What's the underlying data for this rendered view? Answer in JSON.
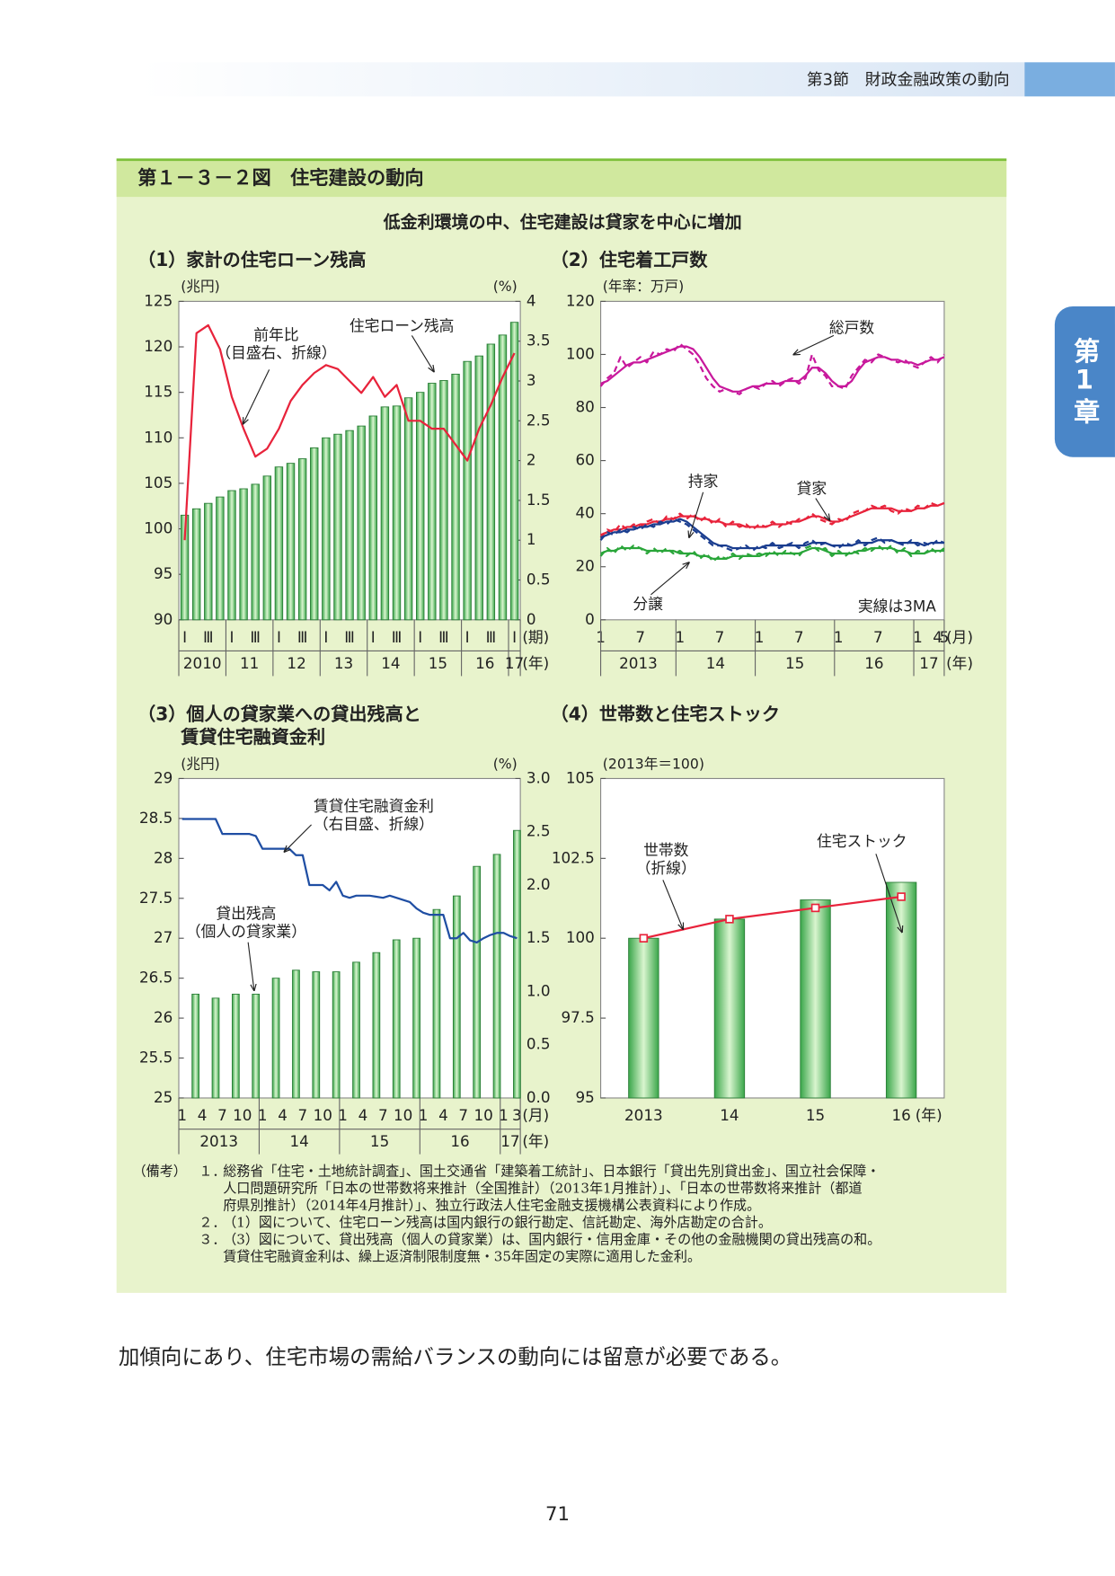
{
  "header": {
    "section": "第3節　財政金融政策の動向",
    "chapter": "第1章"
  },
  "figure": {
    "title": "第１－３－２図　住宅建設の動向",
    "subtitle": "低金利環境の中、住宅建設は貸家を中心に増加"
  },
  "chart_data": [
    {
      "type": "bar",
      "title": [
        "（1）家計の住宅ローン残高"
      ],
      "y_unit": "(兆円)",
      "y2_unit": "(%)",
      "categories": [
        "Ⅰ",
        null,
        "Ⅲ",
        null,
        "Ⅰ",
        null,
        "Ⅲ",
        null,
        "Ⅰ",
        null,
        "Ⅲ",
        null,
        "Ⅰ",
        null,
        "Ⅲ",
        null,
        "Ⅰ",
        null,
        "Ⅲ",
        null,
        "Ⅰ",
        null,
        "Ⅲ",
        null,
        "Ⅰ",
        null,
        "Ⅲ",
        null,
        "Ⅰ"
      ],
      "years": [
        "2010",
        "11",
        "12",
        "13",
        "14",
        "15",
        "16",
        "17"
      ],
      "x_units": [
        "(期)",
        "(年)"
      ],
      "ylim": [
        90,
        125
      ],
      "yticks": [
        90,
        95,
        100,
        105,
        110,
        115,
        120,
        125
      ],
      "y2lim": [
        0,
        4
      ],
      "y2ticks": [
        0,
        0.5,
        1,
        1.5,
        2,
        2.5,
        3,
        3.5,
        4
      ],
      "series": [
        {
          "name": "住宅ローン残高",
          "kind": "bar",
          "color": "#3aa64a",
          "values": [
            101.5,
            102.2,
            102.8,
            103.5,
            104.2,
            104.4,
            104.9,
            105.8,
            106.8,
            107.2,
            107.7,
            108.9,
            110.0,
            110.4,
            110.8,
            111.3,
            112.4,
            113.4,
            113.5,
            114.4,
            115.0,
            116.0,
            116.3,
            117.0,
            118.4,
            119.0,
            120.3,
            121.3,
            122.7
          ]
        },
        {
          "name": "前年比",
          "note": "（目盛右、折線）",
          "kind": "line",
          "axis": "y2",
          "color": "#e8233b",
          "values": [
            1.0,
            3.6,
            3.7,
            3.4,
            2.8,
            2.4,
            2.05,
            2.15,
            2.4,
            2.75,
            2.95,
            3.1,
            3.2,
            3.15,
            3.0,
            2.85,
            3.05,
            2.8,
            2.95,
            2.5,
            2.5,
            2.4,
            2.4,
            2.2,
            2.0,
            2.4,
            2.7,
            3.05,
            3.35
          ]
        }
      ]
    },
    {
      "type": "line",
      "title": [
        "（2）住宅着工戸数"
      ],
      "y_unit": "(年率：万戸)",
      "annotation": "実線は3MA",
      "categories": [
        "1",
        null,
        null,
        null,
        null,
        null,
        "7",
        null,
        null,
        null,
        null,
        null,
        "1",
        null,
        null,
        null,
        null,
        null,
        "7",
        null,
        null,
        null,
        null,
        null,
        "1",
        null,
        null,
        null,
        null,
        null,
        "7",
        null,
        null,
        null,
        null,
        null,
        "1",
        null,
        null,
        null,
        null,
        null,
        "7",
        null,
        null,
        null,
        null,
        null,
        "1",
        null,
        null,
        "4",
        "5"
      ],
      "years": [
        "2013",
        "14",
        "15",
        "16",
        "17"
      ],
      "x_units": [
        "(月)",
        "(年)"
      ],
      "ylim": [
        0,
        120
      ],
      "yticks": [
        0,
        20,
        40,
        60,
        80,
        100,
        120
      ],
      "series": [
        {
          "name": "総戸数",
          "color": "#c8189c",
          "values": [
            89,
            90,
            92,
            94,
            96,
            97,
            97,
            98,
            99,
            100,
            101,
            102,
            103,
            103,
            102,
            99,
            95,
            91,
            88,
            87,
            86,
            86,
            87,
            88,
            88,
            89,
            89,
            89,
            90,
            90,
            90,
            92,
            95,
            95,
            93,
            90,
            88,
            88,
            90,
            94,
            97,
            98,
            99,
            99,
            98,
            98,
            97,
            97,
            96,
            97,
            98,
            98,
            99
          ]
        },
        {
          "color": "#c8189c",
          "dashed": true,
          "values": [
            88,
            91,
            93,
            99,
            95,
            97,
            99,
            97,
            101,
            100,
            102,
            101,
            104,
            102,
            100,
            96,
            91,
            88,
            86,
            87,
            86,
            85,
            87,
            88,
            87,
            89,
            90,
            88,
            90,
            91,
            89,
            91,
            100,
            94,
            92,
            88,
            88,
            87,
            92,
            95,
            98,
            97,
            100,
            99,
            98,
            97,
            98,
            96,
            95,
            97,
            99,
            97,
            100
          ]
        },
        {
          "name": "貸家",
          "color": "#e8233b",
          "values": [
            32,
            33,
            34,
            34,
            35,
            35,
            36,
            36,
            37,
            37,
            38,
            38,
            39,
            39,
            39,
            38,
            38,
            37,
            37,
            36,
            36,
            36,
            35,
            35,
            35,
            35,
            36,
            36,
            36,
            37,
            37,
            38,
            39,
            39,
            38,
            37,
            37,
            38,
            39,
            40,
            41,
            42,
            42,
            42,
            42,
            41,
            41,
            41,
            42,
            42,
            43,
            43,
            44
          ]
        },
        {
          "color": "#e8233b",
          "dashed": true,
          "values": [
            31,
            34,
            33,
            36,
            34,
            36,
            35,
            37,
            38,
            36,
            39,
            38,
            40,
            38,
            40,
            37,
            39,
            36,
            38,
            35,
            37,
            35,
            36,
            34,
            36,
            35,
            37,
            35,
            37,
            36,
            38,
            38,
            40,
            38,
            37,
            36,
            38,
            37,
            40,
            41,
            41,
            43,
            42,
            43,
            41,
            40,
            42,
            41,
            43,
            42,
            44,
            43,
            44
          ]
        },
        {
          "name": "持家",
          "color": "#1a3d8f",
          "values": [
            31,
            32,
            33,
            33,
            34,
            34,
            35,
            35,
            36,
            36,
            37,
            37,
            38,
            37,
            35,
            33,
            31,
            29,
            28,
            28,
            27,
            27,
            27,
            27,
            27,
            28,
            28,
            28,
            28,
            28,
            28,
            28,
            29,
            29,
            29,
            28,
            28,
            28,
            28,
            29,
            29,
            29,
            30,
            30,
            30,
            29,
            29,
            29,
            29,
            28,
            29,
            29,
            29
          ]
        },
        {
          "color": "#1a3d8f",
          "dashed": true,
          "values": [
            30,
            33,
            32,
            34,
            33,
            35,
            34,
            36,
            35,
            37,
            36,
            38,
            37,
            36,
            34,
            32,
            30,
            28,
            28,
            27,
            26,
            27,
            28,
            26,
            28,
            27,
            29,
            27,
            28,
            29,
            27,
            29,
            30,
            28,
            29,
            28,
            27,
            29,
            28,
            30,
            28,
            30,
            31,
            29,
            30,
            29,
            28,
            30,
            28,
            29,
            28,
            30,
            29
          ]
        },
        {
          "name": "分譲",
          "color": "#2aa63a",
          "values": [
            25,
            26,
            26,
            27,
            27,
            27,
            27,
            26,
            26,
            26,
            26,
            26,
            25,
            25,
            25,
            24,
            24,
            23,
            23,
            23,
            24,
            24,
            24,
            24,
            24,
            25,
            25,
            25,
            25,
            25,
            25,
            26,
            27,
            27,
            26,
            25,
            25,
            25,
            25,
            26,
            26,
            27,
            27,
            27,
            27,
            26,
            26,
            25,
            25,
            25,
            26,
            26,
            26
          ]
        },
        {
          "color": "#2aa63a",
          "dashed": true,
          "values": [
            24,
            27,
            25,
            28,
            26,
            28,
            27,
            25,
            27,
            25,
            27,
            25,
            26,
            24,
            26,
            23,
            25,
            22,
            24,
            23,
            25,
            23,
            25,
            24,
            25,
            24,
            26,
            24,
            26,
            25,
            24,
            27,
            28,
            26,
            27,
            24,
            26,
            24,
            26,
            25,
            27,
            26,
            28,
            26,
            28,
            25,
            27,
            24,
            26,
            25,
            27,
            25,
            27
          ]
        }
      ]
    },
    {
      "type": "bar",
      "title": [
        "（3）個人の貸家業への貸出残高と",
        "賃貸住宅融資金利"
      ],
      "y_unit": "(兆円)",
      "y2_unit": "(%)",
      "categories": [
        "1",
        null,
        null,
        "4",
        null,
        null,
        "7",
        null,
        null,
        "10",
        null,
        null,
        "1",
        null,
        null,
        "4",
        null,
        null,
        "7",
        null,
        null,
        "10",
        null,
        null,
        "1",
        null,
        null,
        "4",
        null,
        null,
        "7",
        null,
        null,
        "10",
        null,
        null,
        "1",
        null,
        null,
        "4",
        null,
        null,
        "7",
        null,
        null,
        "10",
        null,
        null,
        "1",
        null,
        "3"
      ],
      "years": [
        "2013",
        "14",
        "15",
        "16",
        "17"
      ],
      "x_units": [
        "(月)",
        "(年)"
      ],
      "ylim": [
        25,
        29
      ],
      "yticks": [
        25,
        25.5,
        26,
        26.5,
        27,
        27.5,
        28,
        28.5,
        29
      ],
      "y2lim": [
        0,
        3
      ],
      "y2ticks": [
        {
          "value": 0,
          "label": "0.0"
        },
        0.5,
        {
          "value": 1,
          "label": "1.0"
        },
        1.5,
        {
          "value": 2,
          "label": "2.0"
        },
        2.5,
        {
          "value": 3,
          "label": "3.0"
        }
      ],
      "series": [
        {
          "name": "貸出残高",
          "note": "（個人の貸家業）",
          "kind": "bar",
          "color": "#3aa64a",
          "values": [
            null,
            null,
            26.3,
            null,
            null,
            26.25,
            null,
            null,
            26.3,
            null,
            null,
            26.3,
            null,
            null,
            26.5,
            null,
            null,
            26.6,
            null,
            null,
            26.58,
            null,
            null,
            26.58,
            null,
            null,
            26.7,
            null,
            null,
            26.82,
            null,
            null,
            26.98,
            null,
            null,
            27.0,
            null,
            null,
            27.36,
            null,
            null,
            27.53,
            null,
            null,
            27.9,
            null,
            null,
            28.05,
            null,
            null,
            28.35
          ]
        },
        {
          "name": "賃貸住宅融資金利",
          "note": "（右目盛、折線）",
          "kind": "line",
          "axis": "y2",
          "color": "#1f4ea3",
          "values": [
            2.62,
            2.62,
            2.62,
            2.62,
            2.62,
            2.62,
            2.48,
            2.48,
            2.48,
            2.48,
            2.48,
            2.46,
            2.34,
            2.34,
            2.34,
            2.34,
            2.34,
            2.28,
            2.28,
            2.0,
            2.0,
            2.0,
            1.95,
            2.03,
            1.9,
            1.88,
            1.9,
            1.9,
            1.9,
            1.89,
            1.88,
            1.9,
            1.88,
            1.86,
            1.84,
            1.78,
            1.74,
            1.72,
            1.72,
            1.72,
            1.5,
            1.5,
            1.55,
            1.48,
            1.46,
            1.5,
            1.53,
            1.55,
            1.55,
            1.52,
            1.5
          ]
        }
      ]
    },
    {
      "type": "bar",
      "title": [
        "（4）世帯数と住宅ストック"
      ],
      "y_unit": "(2013年＝100)",
      "categories": [
        "2013",
        "14",
        "15",
        "16"
      ],
      "x_units": [
        "(年)"
      ],
      "ylim": [
        95,
        105
      ],
      "yticks": [
        95,
        97.5,
        100,
        102.5,
        105
      ],
      "series": [
        {
          "name": "住宅ストック",
          "kind": "bar",
          "color": "#3aa64a",
          "values": [
            100,
            100.6,
            101.2,
            101.75
          ]
        },
        {
          "name": "世帯数",
          "note": "（折線）",
          "kind": "line",
          "markers": true,
          "color": "#e8233b",
          "values": [
            100,
            100.6,
            100.95,
            101.3
          ]
        }
      ]
    }
  ],
  "notes": {
    "label": "（備考）",
    "items": [
      {
        "number": "１．",
        "lines": [
          "総務省「住宅・土地統計調査」、国土交通省「建築着工統計」、日本銀行「貸出先別貸出金」、国立社会保障・",
          "人口問題研究所「日本の世帯数将来推計（全国推計）（2013年1月推計）」、「日本の世帯数将来推計（都道",
          "府県別推計）（2014年4月推計）」、独立行政法人住宅金融支援機構公表資料により作成。"
        ]
      },
      {
        "number": "２．",
        "lines": [
          "（1）図について、住宅ローン残高は国内銀行の銀行勘定、信託勘定、海外店勘定の合計。"
        ]
      },
      {
        "number": "３．",
        "lines": [
          "（3）図について、貸出残高（個人の貸家業）は、国内銀行・信用金庫・その他の金融機関の貸出残高の和。",
          "賃貸住宅融資金利は、繰上返済制限制度無・35年固定の実際に適用した金利。"
        ]
      }
    ]
  },
  "body": "加傾向にあり、住宅市場の需給バランスの動向には留意が必要である。",
  "page_number": "71"
}
